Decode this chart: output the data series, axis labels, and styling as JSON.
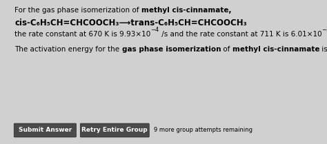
{
  "bg_color": "#d0d0d0",
  "panel_color": "#e0e0e0",
  "btn_color": "#4a4a4a",
  "btn_text_color": "#ffffff",
  "btn1_text": "Submit Answer",
  "btn2_text": "Retry Entire Group",
  "footer_text": "9 more group attempts remaining",
  "fs": 7.5,
  "fs_line2": 8.5,
  "fs_btn": 6.5
}
